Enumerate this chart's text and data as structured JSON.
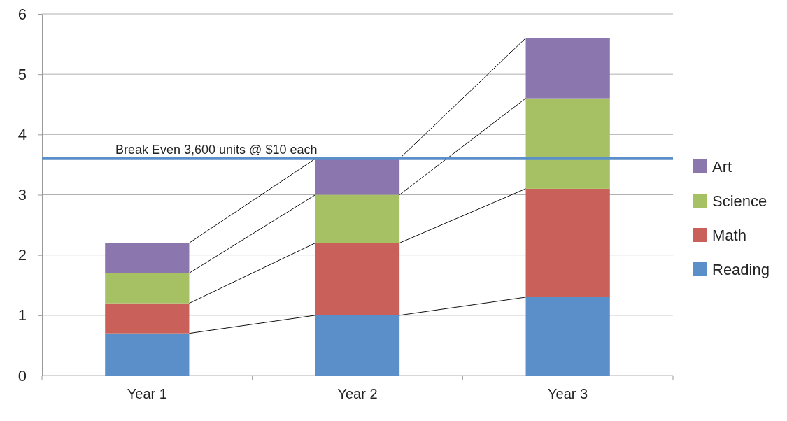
{
  "chart_data": {
    "type": "bar",
    "stacked": true,
    "categories": [
      "Year 1",
      "Year 2",
      "Year 3"
    ],
    "series": [
      {
        "name": "Reading",
        "color": "#5b8fc9",
        "values": [
          0.7,
          1.0,
          1.3
        ]
      },
      {
        "name": "Math",
        "color": "#c9615a",
        "values": [
          0.5,
          1.2,
          1.8
        ]
      },
      {
        "name": "Science",
        "color": "#a5c163",
        "values": [
          0.5,
          0.8,
          1.5
        ]
      },
      {
        "name": "Art",
        "color": "#8c76ae",
        "values": [
          0.5,
          0.6,
          1.0
        ]
      }
    ],
    "ylim": [
      0,
      6
    ],
    "yticks": [
      0,
      1,
      2,
      3,
      4,
      5,
      6
    ],
    "grid": "y",
    "legend": "right",
    "ref_lines": [
      {
        "axis": "y",
        "value": 3.6,
        "label": "Break Even 3,600 units @ $10 each",
        "color": "#5b8fc9"
      }
    ]
  }
}
